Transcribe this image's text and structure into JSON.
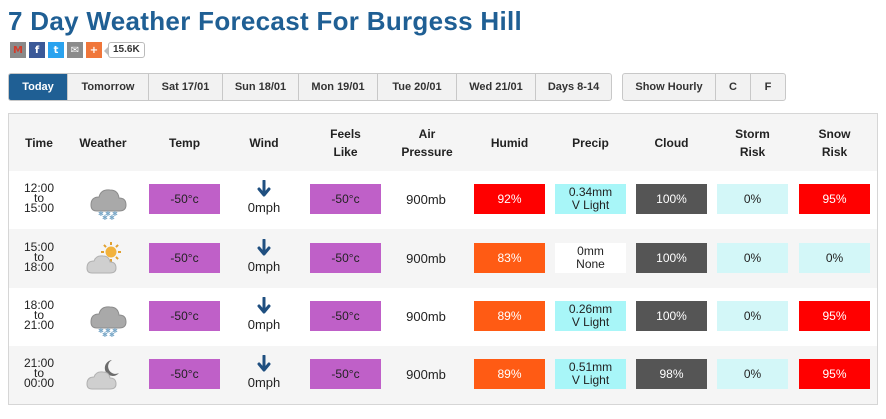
{
  "page": {
    "title": "7 Day Weather Forecast For Burgess Hill"
  },
  "share": {
    "buttons": [
      {
        "name": "gmail-share-icon",
        "glyph": "M"
      },
      {
        "name": "facebook-share-icon",
        "glyph": "f"
      },
      {
        "name": "twitter-share-icon",
        "glyph": "t"
      },
      {
        "name": "email-share-icon",
        "glyph": "✉"
      },
      {
        "name": "more-share-icon",
        "glyph": "+"
      }
    ],
    "count": "15.6K"
  },
  "tabs": {
    "days": [
      {
        "label": "Today",
        "active": true
      },
      {
        "label": "Tomorrow",
        "active": false
      },
      {
        "label": "Sat 17/01",
        "active": false
      },
      {
        "label": "Sun 18/01",
        "active": false
      },
      {
        "label": "Mon 19/01",
        "active": false
      },
      {
        "label": "Tue 20/01",
        "active": false
      },
      {
        "label": "Wed 21/01",
        "active": false
      },
      {
        "label": "Days 8-14",
        "active": false
      }
    ],
    "options": [
      {
        "label": "Show Hourly"
      },
      {
        "label": "C"
      },
      {
        "label": "F"
      }
    ]
  },
  "table": {
    "headers": {
      "time": "Time",
      "weather": "Weather",
      "temp": "Temp",
      "wind": "Wind",
      "feels_1": "Feels",
      "feels_2": "Like",
      "air_1": "Air",
      "air_2": "Pressure",
      "humid": "Humid",
      "precip": "Precip",
      "cloud": "Cloud",
      "storm_1": "Storm",
      "storm_2": "Risk",
      "snow_1": "Snow",
      "snow_2": "Risk"
    },
    "rows": [
      {
        "time_from": "12:00",
        "time_to": "15:00",
        "time_sep": "to",
        "icon": "snow-cloud-icon",
        "temp": "-50°c",
        "wind_speed": "0mph",
        "feels": "-50°c",
        "pressure": "900mb",
        "humid": "92%",
        "humid_color": "#ff0000",
        "precip_1": "0.34mm",
        "precip_2": "V Light",
        "precip_none": false,
        "cloud": "100%",
        "storm": "0%",
        "snow": "95%",
        "snow_color": "#ff0000"
      },
      {
        "time_from": "15:00",
        "time_to": "18:00",
        "time_sep": "to",
        "icon": "sun-behind-cloud-icon",
        "temp": "-50°c",
        "wind_speed": "0mph",
        "feels": "-50°c",
        "pressure": "900mb",
        "humid": "83%",
        "humid_color": "#ff5b14",
        "precip_1": "0mm",
        "precip_2": "None",
        "precip_none": true,
        "cloud": "100%",
        "storm": "0%",
        "snow": "0%",
        "snow_color": "#d3f7f8"
      },
      {
        "time_from": "18:00",
        "time_to": "21:00",
        "time_sep": "to",
        "icon": "snow-cloud-icon",
        "temp": "-50°c",
        "wind_speed": "0mph",
        "feels": "-50°c",
        "pressure": "900mb",
        "humid": "89%",
        "humid_color": "#ff5b14",
        "precip_1": "0.26mm",
        "precip_2": "V Light",
        "precip_none": false,
        "cloud": "100%",
        "storm": "0%",
        "snow": "95%",
        "snow_color": "#ff0000"
      },
      {
        "time_from": "21:00",
        "time_to": "00:00",
        "time_sep": "to",
        "icon": "moon-behind-cloud-icon",
        "temp": "-50°c",
        "wind_speed": "0mph",
        "feels": "-50°c",
        "pressure": "900mb",
        "humid": "89%",
        "humid_color": "#ff5b14",
        "precip_1": "0.51mm",
        "precip_2": "V Light",
        "precip_none": false,
        "cloud": "98%",
        "storm": "0%",
        "snow": "95%",
        "snow_color": "#ff0000"
      }
    ]
  }
}
